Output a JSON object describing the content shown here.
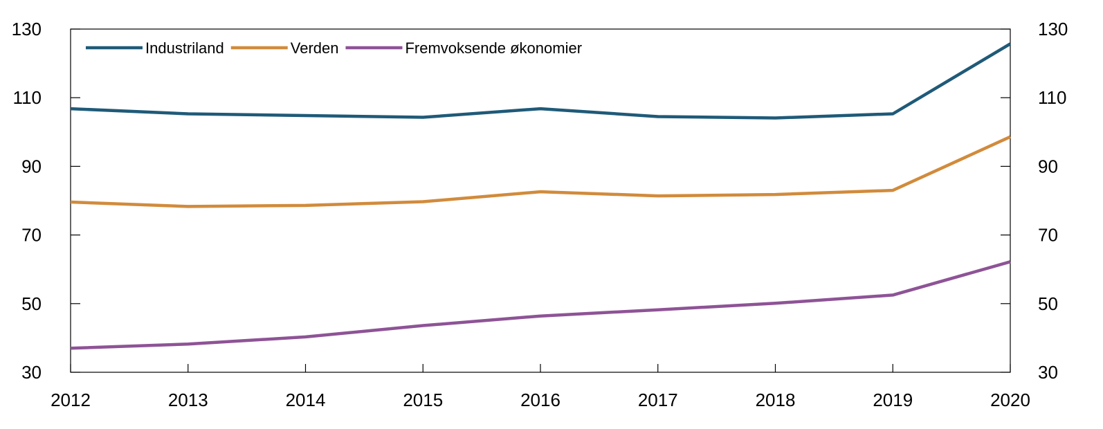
{
  "chart_data": {
    "type": "line",
    "title": "",
    "xlabel": "",
    "ylabel": "",
    "x": [
      "2012",
      "2013",
      "2014",
      "2015",
      "2016",
      "2017",
      "2018",
      "2019",
      "2020"
    ],
    "ylim": [
      30,
      130
    ],
    "yticks": [
      "130",
      "110",
      "90",
      "70",
      "50",
      "30"
    ],
    "grid": false,
    "legend_position": "top-left",
    "series": [
      {
        "name": "Industriland",
        "color": "#1f5a78",
        "values": [
          106.8,
          105.3,
          104.8,
          104.3,
          106.8,
          104.5,
          104.1,
          105.3,
          125.7
        ]
      },
      {
        "name": "Verden",
        "color": "#d18b3c",
        "values": [
          79.6,
          78.3,
          78.6,
          79.7,
          82.6,
          81.4,
          81.8,
          83.0,
          98.6
        ]
      },
      {
        "name": "Fremvoksende økonomier",
        "color": "#8e5396",
        "values": [
          37.0,
          38.2,
          40.3,
          43.6,
          46.4,
          48.2,
          50.1,
          52.5,
          62.2
        ]
      }
    ]
  }
}
